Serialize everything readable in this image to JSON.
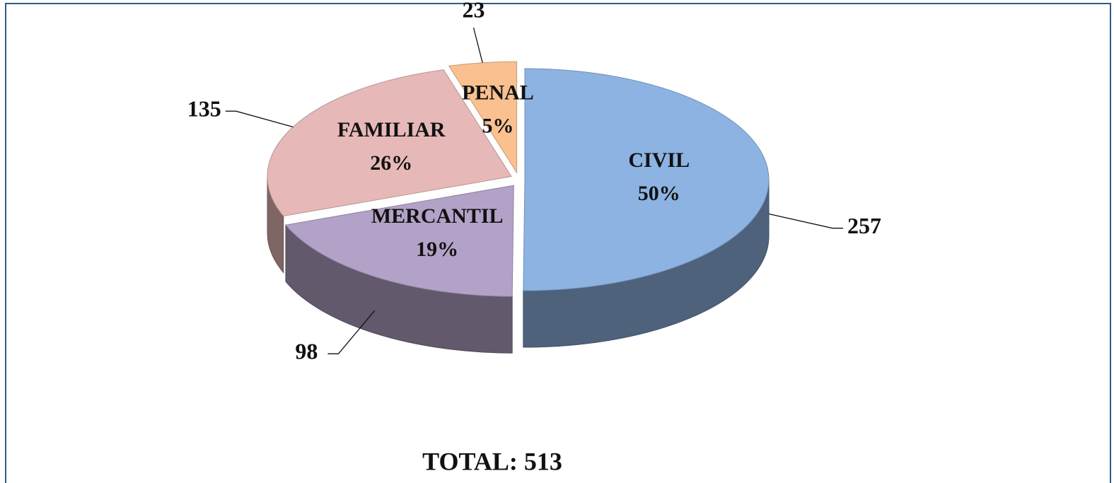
{
  "chart_data": {
    "type": "pie",
    "categories": [
      "CIVIL",
      "MERCANTIL",
      "FAMILIAR",
      "PENAL"
    ],
    "values": [
      257,
      98,
      135,
      23
    ],
    "percentages": [
      50,
      19,
      26,
      5
    ],
    "percentage_labels": [
      "50%",
      "19%",
      "26%",
      "5%"
    ],
    "colors": [
      "#8db3e2",
      "#b3a2c7",
      "#e6b9b8",
      "#fac090"
    ],
    "total_label": "TOTAL: 513"
  }
}
